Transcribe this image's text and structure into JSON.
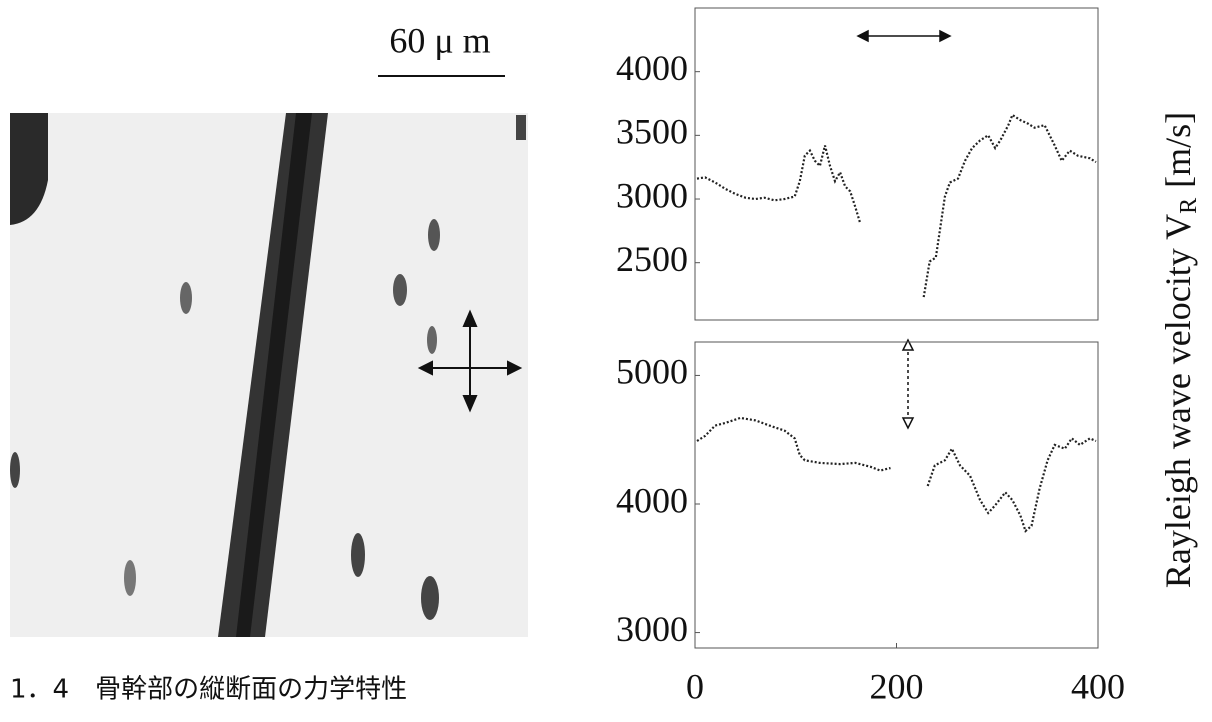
{
  "scale_bar": "60 μ m",
  "caption": "1．4　骨幹部の縦断面の力学特性",
  "y_axis_label": {
    "text": "Rayleigh wave velocity V",
    "subscript": "R",
    "unit": "[m/s]"
  },
  "chart_data": [
    {
      "type": "line",
      "xlim": [
        0,
        400
      ],
      "ylim": [
        2050,
        4500
      ],
      "yticks": [
        2500,
        3000,
        3500,
        4000
      ],
      "x": [
        2,
        10,
        20,
        30,
        40,
        50,
        60,
        69,
        79,
        89,
        99,
        104,
        109,
        114,
        119,
        124,
        129,
        134,
        139,
        144,
        149,
        154,
        159,
        164,
        200,
        227,
        233,
        239,
        243,
        248,
        253,
        261,
        268,
        275,
        283,
        291,
        298,
        303,
        311,
        315,
        323,
        331,
        337,
        347,
        357,
        364,
        372,
        380,
        392,
        398
      ],
      "series": [
        {
          "color": "#222222",
          "values": [
            3160,
            3170,
            3130,
            3080,
            3040,
            3010,
            3000,
            3010,
            2990,
            3000,
            3020,
            3140,
            3340,
            3380,
            3300,
            3260,
            3420,
            3260,
            3140,
            3210,
            3100,
            3060,
            2940,
            2810,
            null,
            2230,
            2510,
            2540,
            2750,
            3020,
            3130,
            3160,
            3300,
            3400,
            3460,
            3500,
            3400,
            3460,
            3580,
            3660,
            3620,
            3590,
            3560,
            3580,
            3420,
            3300,
            3380,
            3340,
            3320,
            3290
          ]
        }
      ]
    },
    {
      "type": "line",
      "xlim": [
        0,
        400
      ],
      "ylim": [
        2880,
        5260
      ],
      "yticks": [
        3000,
        4000,
        5000
      ],
      "xticks": [
        0,
        200,
        400
      ],
      "x": [
        2,
        10,
        20,
        30,
        45,
        60,
        74,
        89,
        99,
        104,
        109,
        124,
        144,
        159,
        174,
        184,
        194,
        210,
        231,
        238,
        248,
        255,
        263,
        273,
        283,
        291,
        298,
        308,
        315,
        323,
        328,
        334,
        342,
        350,
        357,
        367,
        374,
        382,
        392,
        398
      ],
      "series": [
        {
          "color": "#222222",
          "values": [
            4490,
            4530,
            4610,
            4630,
            4670,
            4650,
            4610,
            4570,
            4510,
            4380,
            4340,
            4320,
            4310,
            4320,
            4290,
            4260,
            4280,
            null,
            4140,
            4300,
            4340,
            4430,
            4300,
            4220,
            4030,
            3930,
            3990,
            4090,
            4030,
            3910,
            3790,
            3830,
            4120,
            4340,
            4460,
            4430,
            4510,
            4460,
            4510,
            4490
          ]
        }
      ]
    }
  ]
}
